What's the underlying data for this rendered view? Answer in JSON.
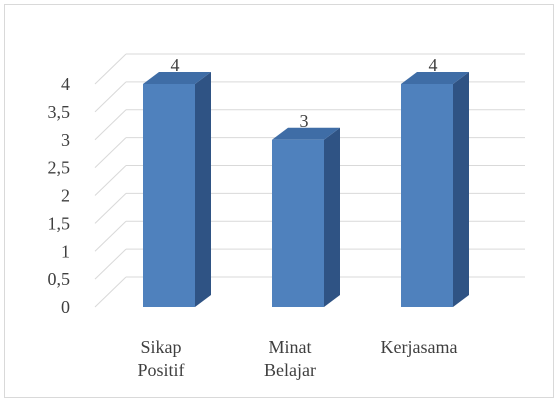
{
  "chart_data": {
    "type": "bar",
    "style": "3d-column",
    "categories": [
      [
        "Sikap",
        "Positif"
      ],
      [
        "Minat",
        "Belajar"
      ],
      [
        "Kerjasama"
      ]
    ],
    "values": [
      4,
      3,
      4
    ],
    "data_labels": [
      "4",
      "3",
      "4"
    ],
    "y_ticks": [
      "0",
      "0,5",
      "1",
      "1,5",
      "2",
      "2,5",
      "3",
      "3,5",
      "4"
    ],
    "ylim": [
      0,
      4
    ],
    "grid": true,
    "legend": "none",
    "colors": {
      "front": "#4f81bd",
      "side": "#2f5384",
      "top": "#3f6da6",
      "grid": "#d9d9d9",
      "text": "#3f3f3f"
    }
  }
}
